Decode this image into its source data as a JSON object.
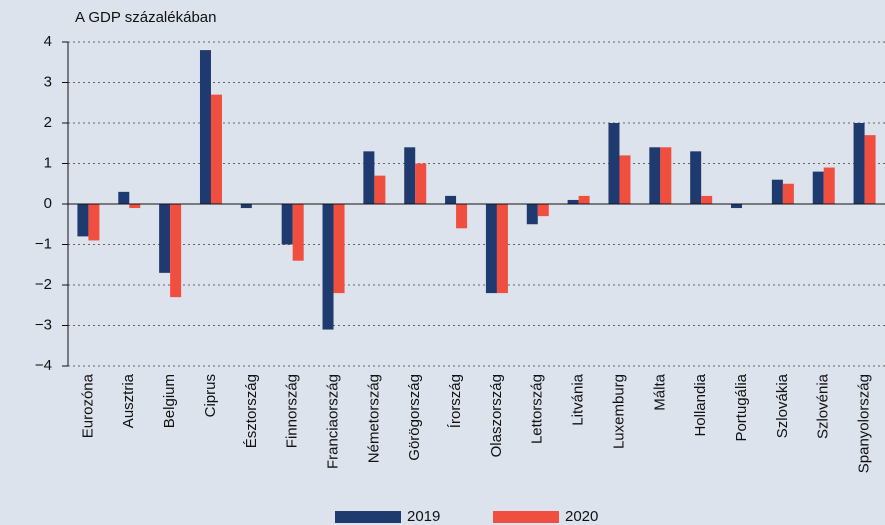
{
  "chart_data": {
    "type": "bar",
    "title": "A GDP százalékában",
    "categories": [
      "Eurozóna",
      "Ausztria",
      "Belgium",
      "Ciprus",
      "Észtország",
      "Finnország",
      "Franciaország",
      "Németország",
      "Görögország",
      "Írország",
      "Olaszország",
      "Lettország",
      "Litvánia",
      "Luxemburg",
      "Málta",
      "Hollandia",
      "Portugália",
      "Szlovákia",
      "Szlovénia",
      "Spanyolország"
    ],
    "series": [
      {
        "name": "2019",
        "color": "#1f3a6e",
        "values": [
          -0.8,
          0.3,
          -1.7,
          3.8,
          -0.1,
          -1.0,
          -3.1,
          1.3,
          1.4,
          0.2,
          -2.2,
          -0.5,
          0.1,
          2.0,
          1.4,
          1.3,
          -0.1,
          0.6,
          0.8,
          2.0
        ]
      },
      {
        "name": "2020",
        "color": "#f04e3e",
        "values": [
          -0.9,
          -0.1,
          -2.3,
          2.7,
          0,
          -1.4,
          -2.2,
          0.7,
          1.0,
          -0.6,
          -2.2,
          -0.3,
          0.2,
          1.2,
          1.4,
          0.2,
          0,
          0.5,
          0.9,
          1.7
        ]
      }
    ],
    "ylim": [
      -4,
      4
    ],
    "yticks": [
      {
        "value": -4,
        "label": "−4"
      },
      {
        "value": -3,
        "label": "−3"
      },
      {
        "value": -2,
        "label": "−2"
      },
      {
        "value": -1,
        "label": "−1"
      },
      0,
      1,
      2,
      3,
      4
    ],
    "grid": true
  }
}
